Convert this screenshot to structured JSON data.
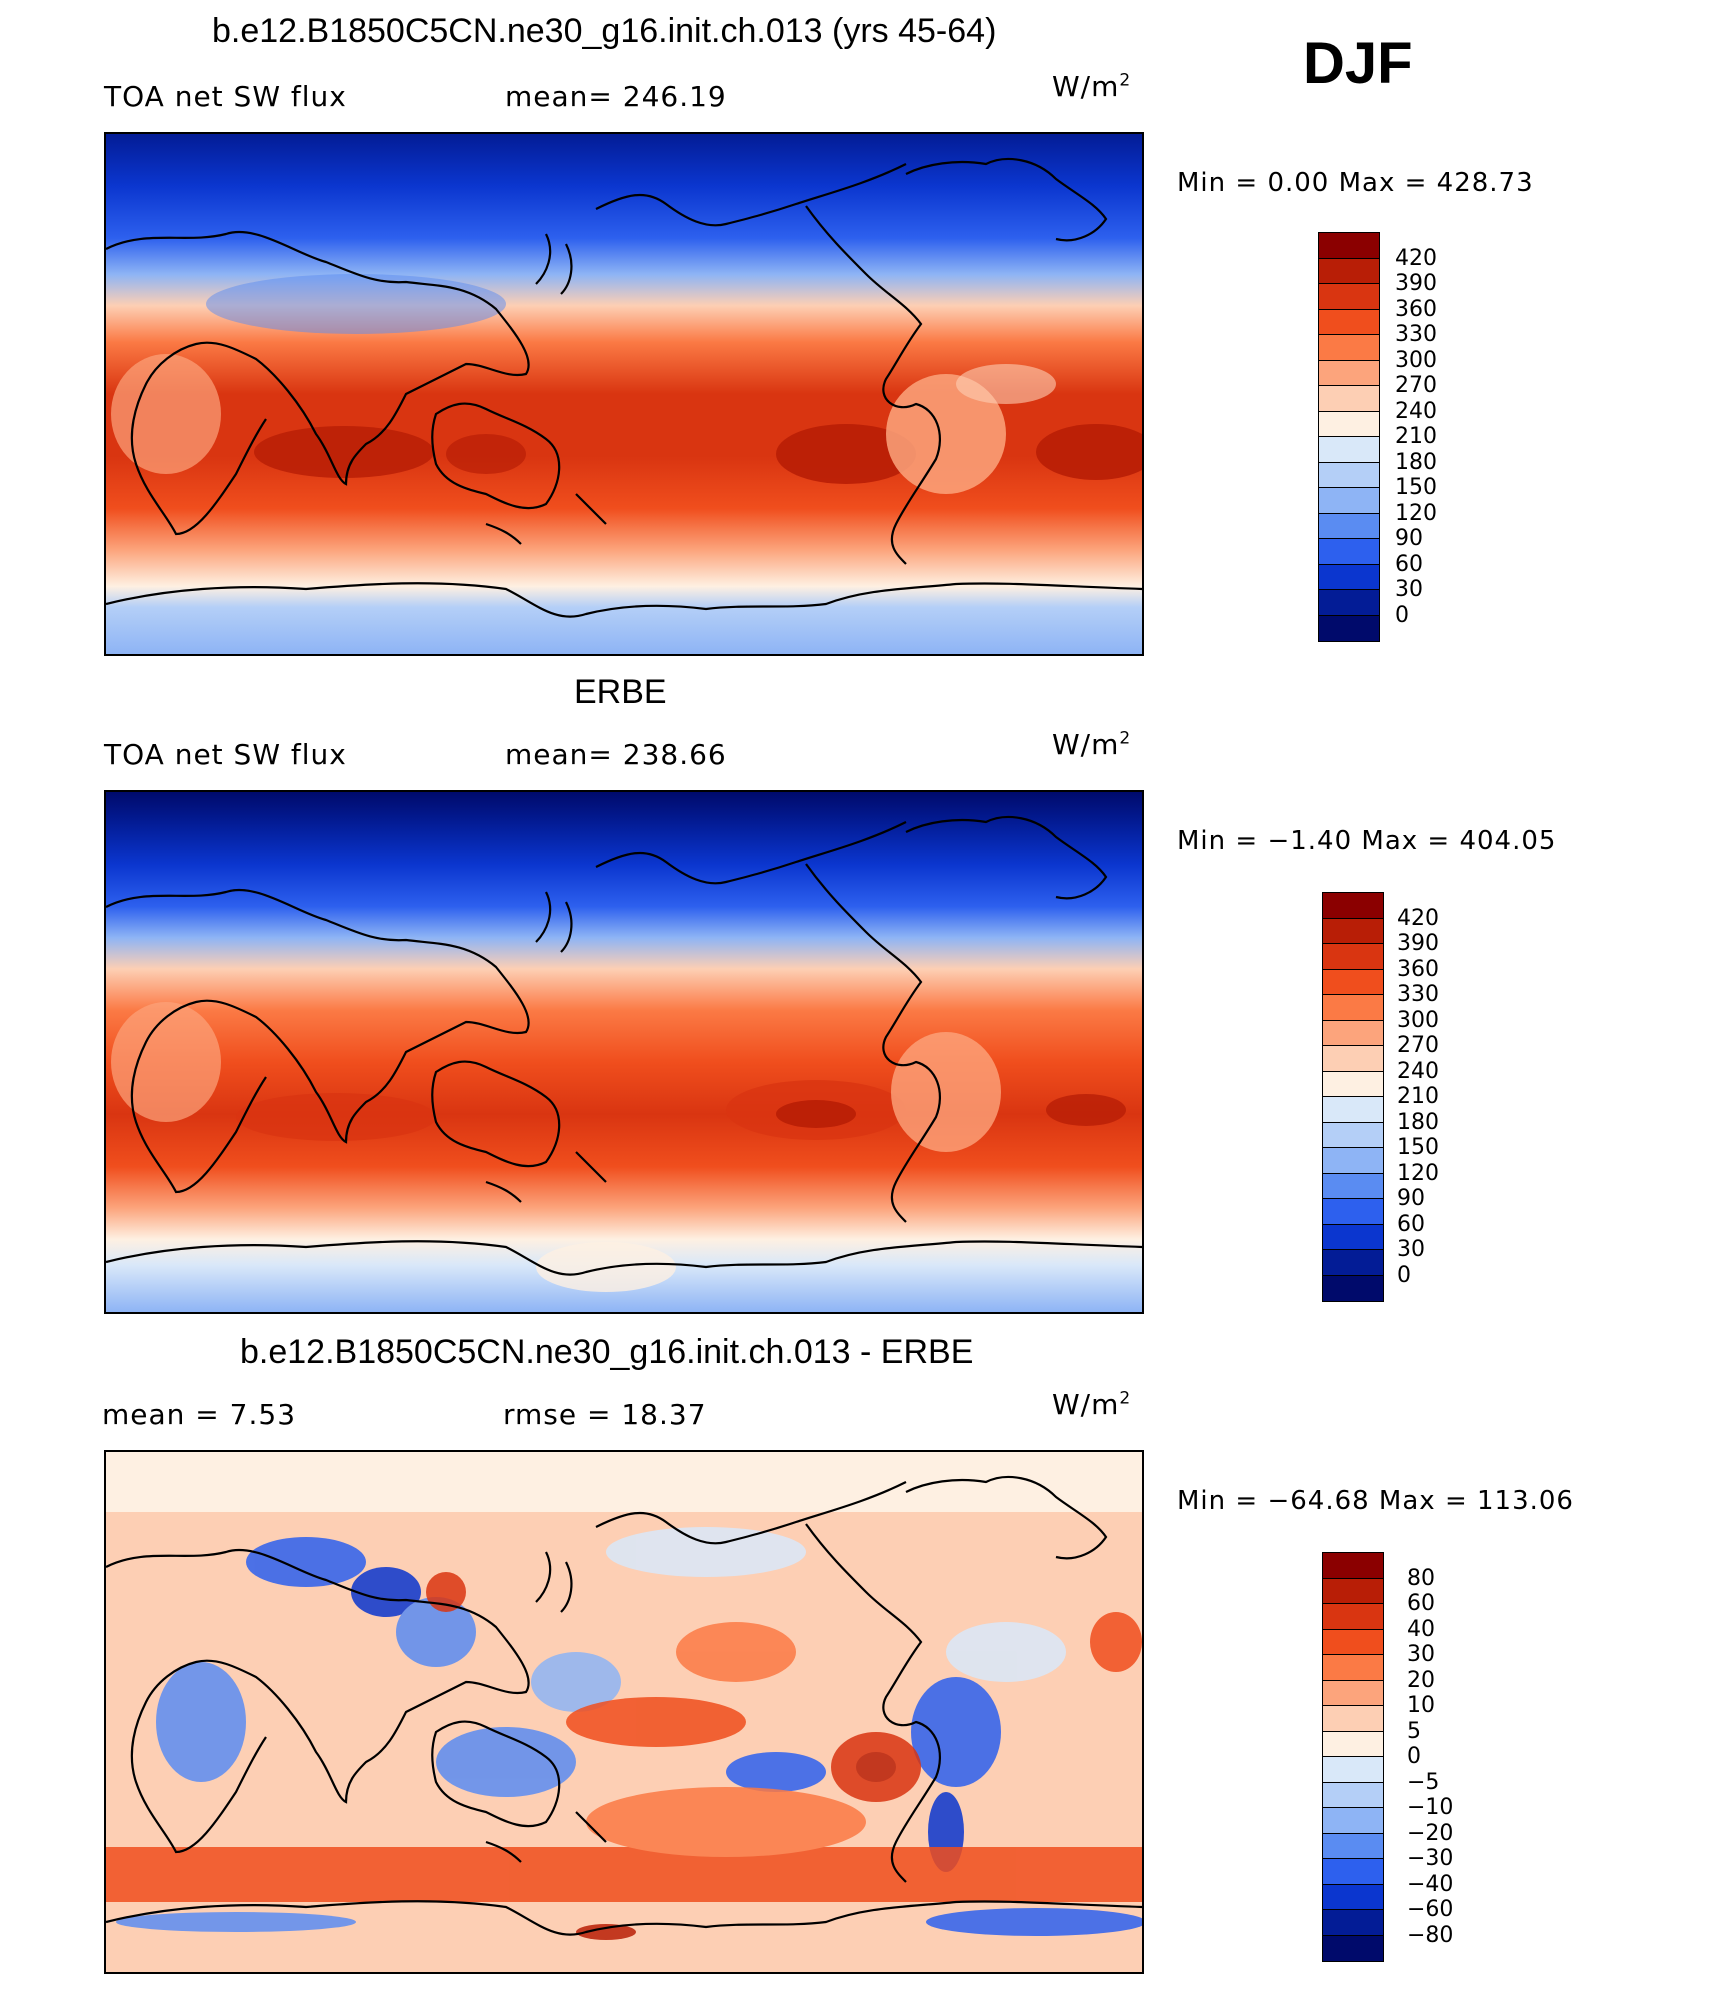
{
  "season": "DJF",
  "panels": [
    {
      "title": "b.e12.B1850C5CN.ne30_g16.init.ch.013 (yrs 45-64)",
      "left_label": "TOA net SW flux",
      "center_label": "mean=  246.19",
      "units": "W/m",
      "units_exp": "2",
      "minmax": "Min =     0.00  Max  =  428.73",
      "colorbar_labels": [
        "420",
        "390",
        "360",
        "330",
        "300",
        "270",
        "240",
        "210",
        "180",
        "150",
        "120",
        "90",
        "60",
        "30",
        "0"
      ],
      "colorbar_colors": [
        "#8b0000",
        "#b81e06",
        "#d93511",
        "#f04e1d",
        "#fb7a45",
        "#fca47c",
        "#fdcfb4",
        "#fef0e2",
        "#d9e8f9",
        "#b4cff7",
        "#8eb4f5",
        "#5a8cf2",
        "#2d60ee",
        "#0b36cf",
        "#031c96",
        "#000a6b"
      ]
    },
    {
      "title": "ERBE",
      "left_label": "TOA net SW flux",
      "center_label": "mean=  238.66",
      "units": "W/m",
      "units_exp": "2",
      "minmax": "Min =   −1.40  Max  =  404.05",
      "colorbar_labels": [
        "420",
        "390",
        "360",
        "330",
        "300",
        "270",
        "240",
        "210",
        "180",
        "150",
        "120",
        "90",
        "60",
        "30",
        "0"
      ],
      "colorbar_colors": [
        "#8b0000",
        "#b81e06",
        "#d93511",
        "#f04e1d",
        "#fb7a45",
        "#fca47c",
        "#fdcfb4",
        "#fef0e2",
        "#d9e8f9",
        "#b4cff7",
        "#8eb4f5",
        "#5a8cf2",
        "#2d60ee",
        "#0b36cf",
        "#031c96",
        "#000a6b"
      ]
    },
    {
      "title": "b.e12.B1850C5CN.ne30_g16.init.ch.013 - ERBE",
      "left_label": "mean =     7.53",
      "center_label": "rmse =    18.37",
      "units": "W/m",
      "units_exp": "2",
      "minmax": "Min = −64.68  Max  =  113.06",
      "colorbar_labels": [
        "80",
        "60",
        "40",
        "30",
        "20",
        "10",
        "5",
        "0",
        "−5",
        "−10",
        "−20",
        "−30",
        "−40",
        "−60",
        "−80"
      ],
      "colorbar_colors": [
        "#8b0000",
        "#b81e06",
        "#d93511",
        "#f04e1d",
        "#fb7a45",
        "#fca47c",
        "#fdcfb4",
        "#fef0e2",
        "#d9e8f9",
        "#b4cff7",
        "#8eb4f5",
        "#5a8cf2",
        "#2d60ee",
        "#0b36cf",
        "#031c96",
        "#000a6b"
      ]
    }
  ]
}
